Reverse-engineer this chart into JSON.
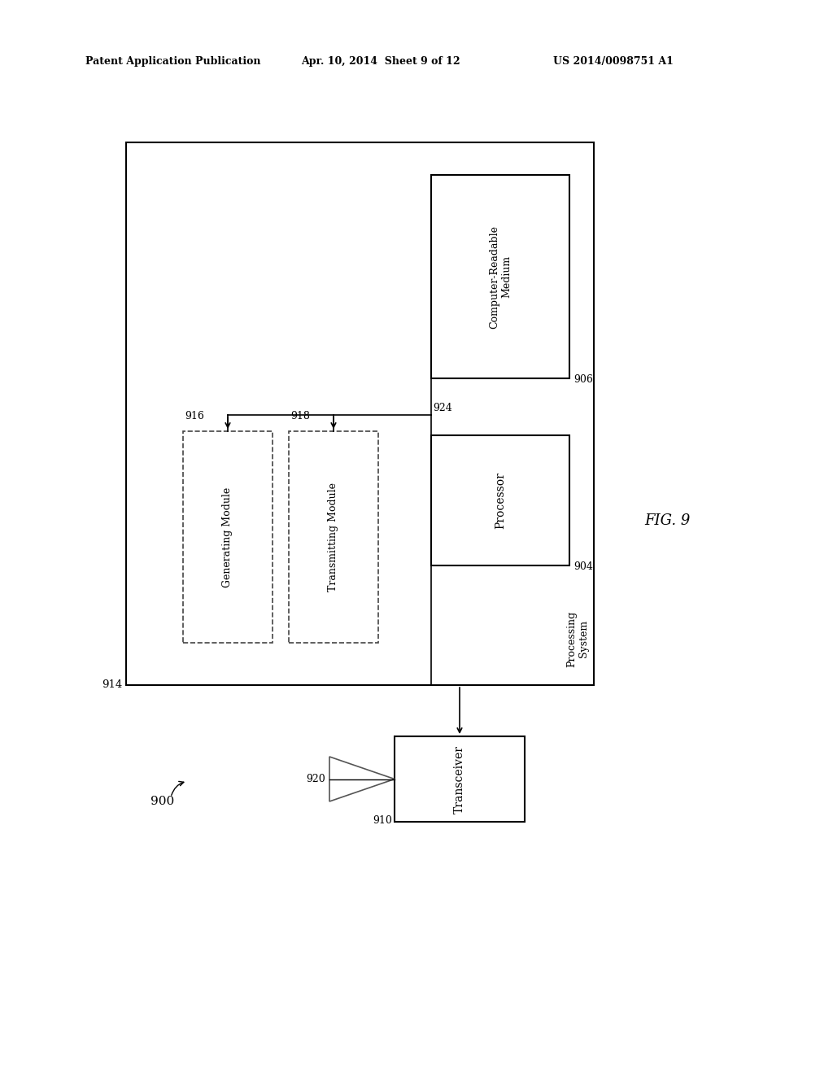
{
  "bg_color": "#ffffff",
  "header_left": "Patent Application Publication",
  "header_mid": "Apr. 10, 2014  Sheet 9 of 12",
  "header_right": "US 2014/0098751 A1",
  "fig_label": "FIG. 9",
  "label_900": "900",
  "label_914": "914",
  "label_906": "906",
  "label_904": "904",
  "label_910": "910",
  "label_916": "916",
  "label_918": "918",
  "label_924": "924",
  "label_920": "920",
  "text_processing_system": "Processing\nSystem",
  "text_crm": "Computer-Readable\nMedium",
  "text_processor": "Processor",
  "text_transceiver": "Transceiver",
  "text_generating": "Generating Module",
  "text_transmitting": "Transmitting Module"
}
